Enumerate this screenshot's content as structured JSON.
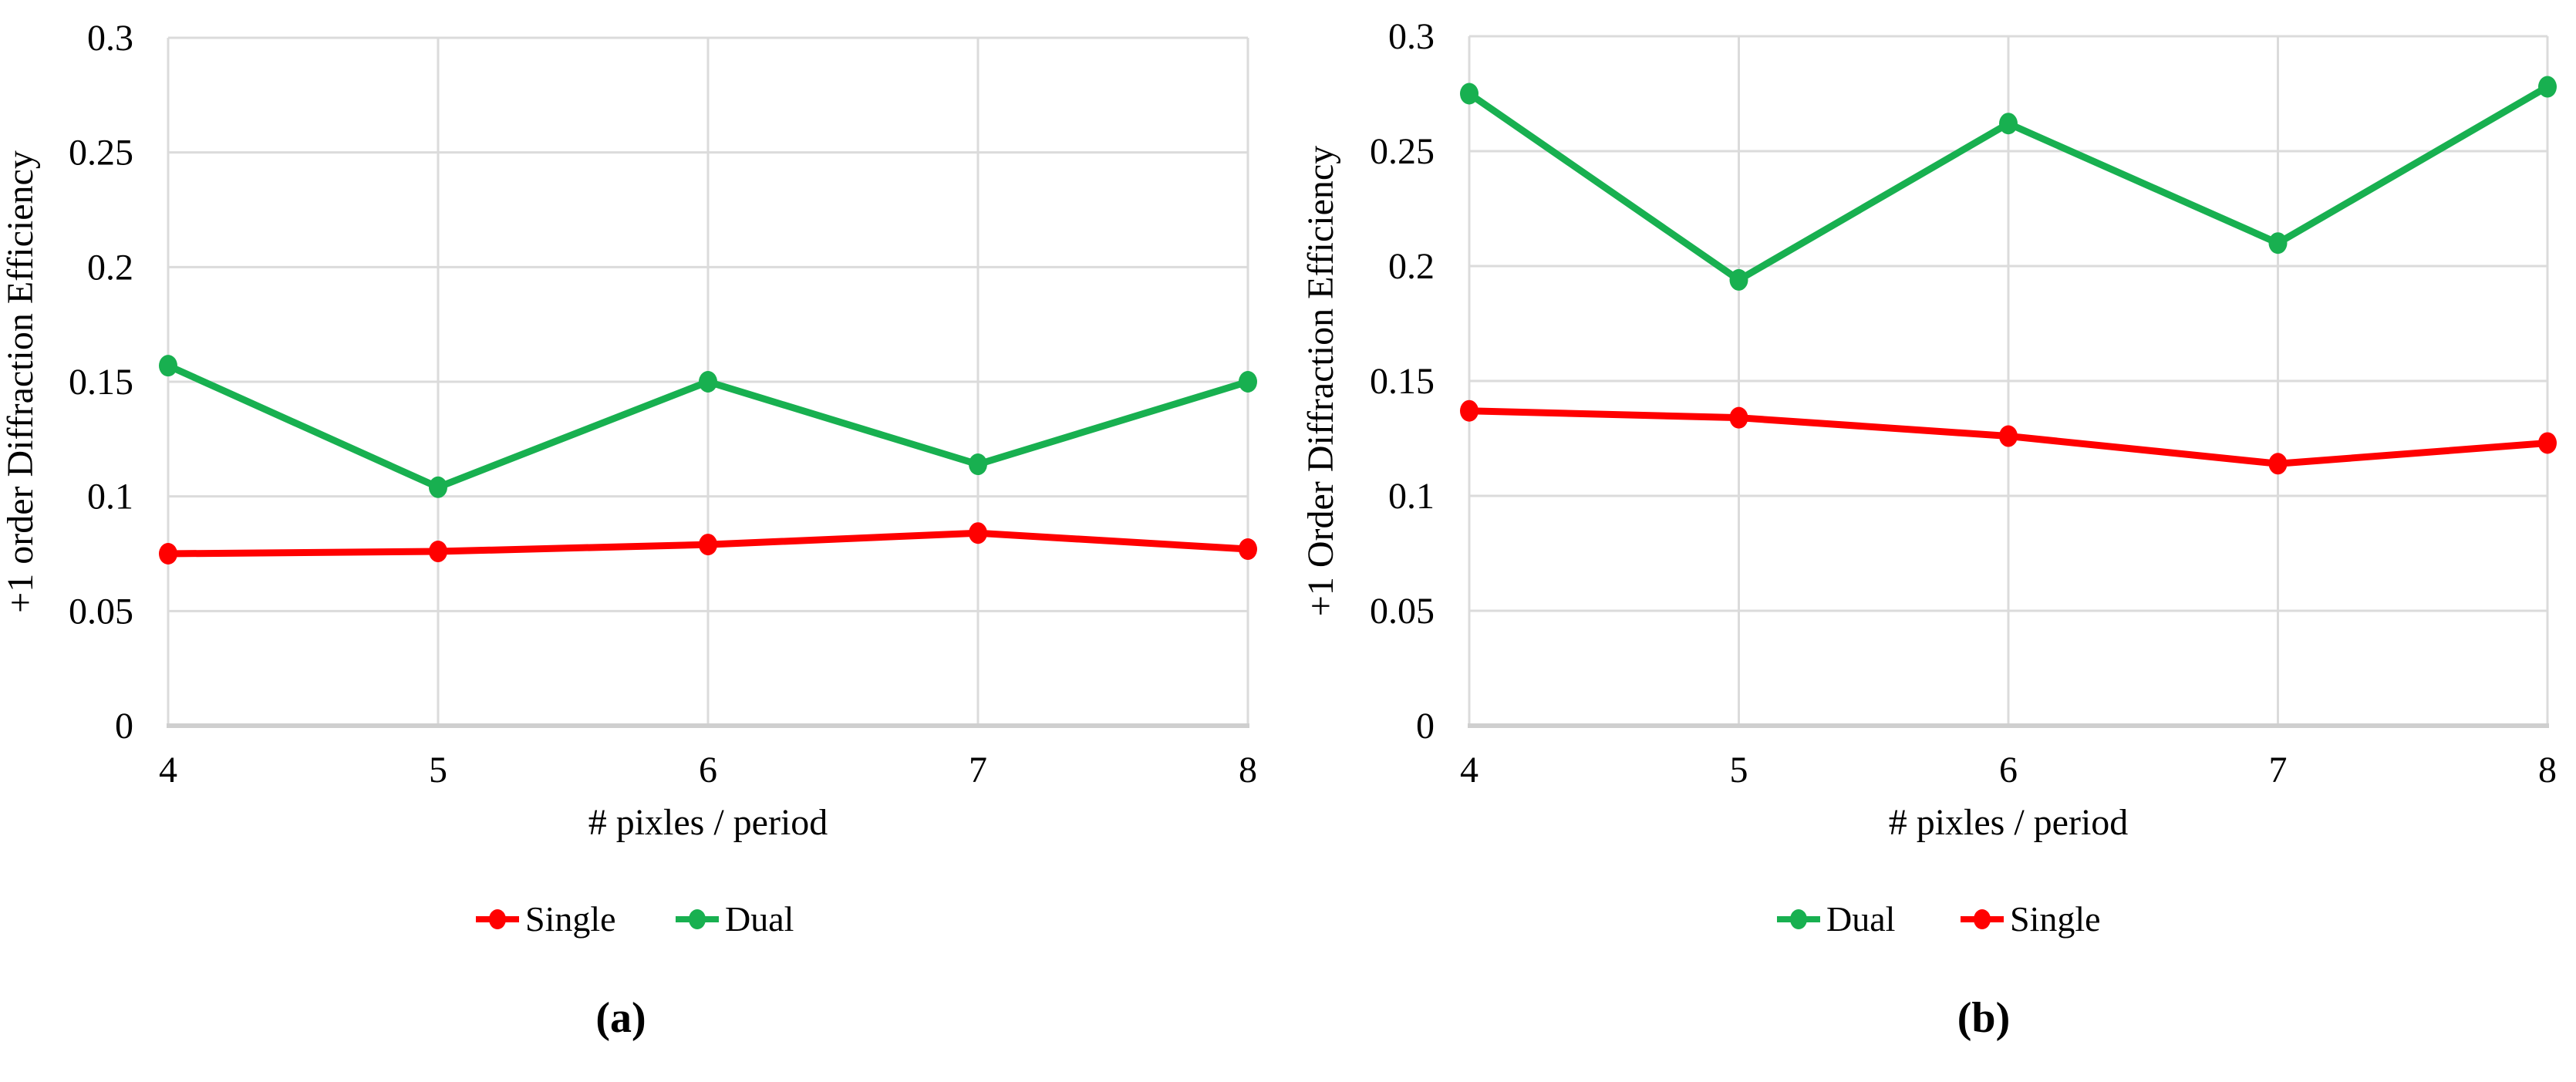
{
  "figure": {
    "background": "#ffffff",
    "gridline_color": "#dbdbdb",
    "axis_color": "#cfcfcf",
    "text_color": "#000000",
    "accent_red": "#ff0000",
    "accent_green": "#18b050"
  },
  "chart_data": [
    {
      "id": "a",
      "type": "line",
      "caption": "(a)",
      "title": "",
      "xlabel": "# pixles / period",
      "ylabel": "+1 order Diffraction Efficiency",
      "x": [
        4,
        5,
        6,
        7,
        8
      ],
      "x_tick_labels": [
        "4",
        "5",
        "6",
        "7",
        "8"
      ],
      "y_ticks": [
        0,
        0.05,
        0.1,
        0.15,
        0.2,
        0.25,
        0.3
      ],
      "y_tick_labels": [
        "0",
        "0.05",
        "0.1",
        "0.15",
        "0.2",
        "0.25",
        "0.3"
      ],
      "xlim": [
        4,
        8
      ],
      "ylim": [
        0,
        0.3
      ],
      "grid": true,
      "legend_position": "bottom",
      "legend_order": [
        "Single",
        "Dual"
      ],
      "series": [
        {
          "name": "Single",
          "color": "#ff0000",
          "values": [
            0.075,
            0.076,
            0.079,
            0.084,
            0.077
          ]
        },
        {
          "name": "Dual",
          "color": "#18b050",
          "values": [
            0.157,
            0.104,
            0.15,
            0.114,
            0.15
          ]
        }
      ]
    },
    {
      "id": "b",
      "type": "line",
      "caption": "(b)",
      "title": "",
      "xlabel": "# pixles / period",
      "ylabel": "+1 Order Diffraction Efficiency",
      "x": [
        4,
        5,
        6,
        7,
        8
      ],
      "x_tick_labels": [
        "4",
        "5",
        "6",
        "7",
        "8"
      ],
      "y_ticks": [
        0,
        0.05,
        0.1,
        0.15,
        0.2,
        0.25,
        0.3
      ],
      "y_tick_labels": [
        "0",
        "0.05",
        "0.1",
        "0.15",
        "0.2",
        "0.25",
        "0.3"
      ],
      "xlim": [
        4,
        8
      ],
      "ylim": [
        0,
        0.3
      ],
      "grid": true,
      "legend_position": "bottom",
      "legend_order": [
        "Dual",
        "Single"
      ],
      "series": [
        {
          "name": "Dual",
          "color": "#18b050",
          "values": [
            0.275,
            0.194,
            0.262,
            0.21,
            0.278
          ]
        },
        {
          "name": "Single",
          "color": "#ff0000",
          "values": [
            0.137,
            0.134,
            0.126,
            0.114,
            0.123
          ]
        }
      ]
    }
  ]
}
